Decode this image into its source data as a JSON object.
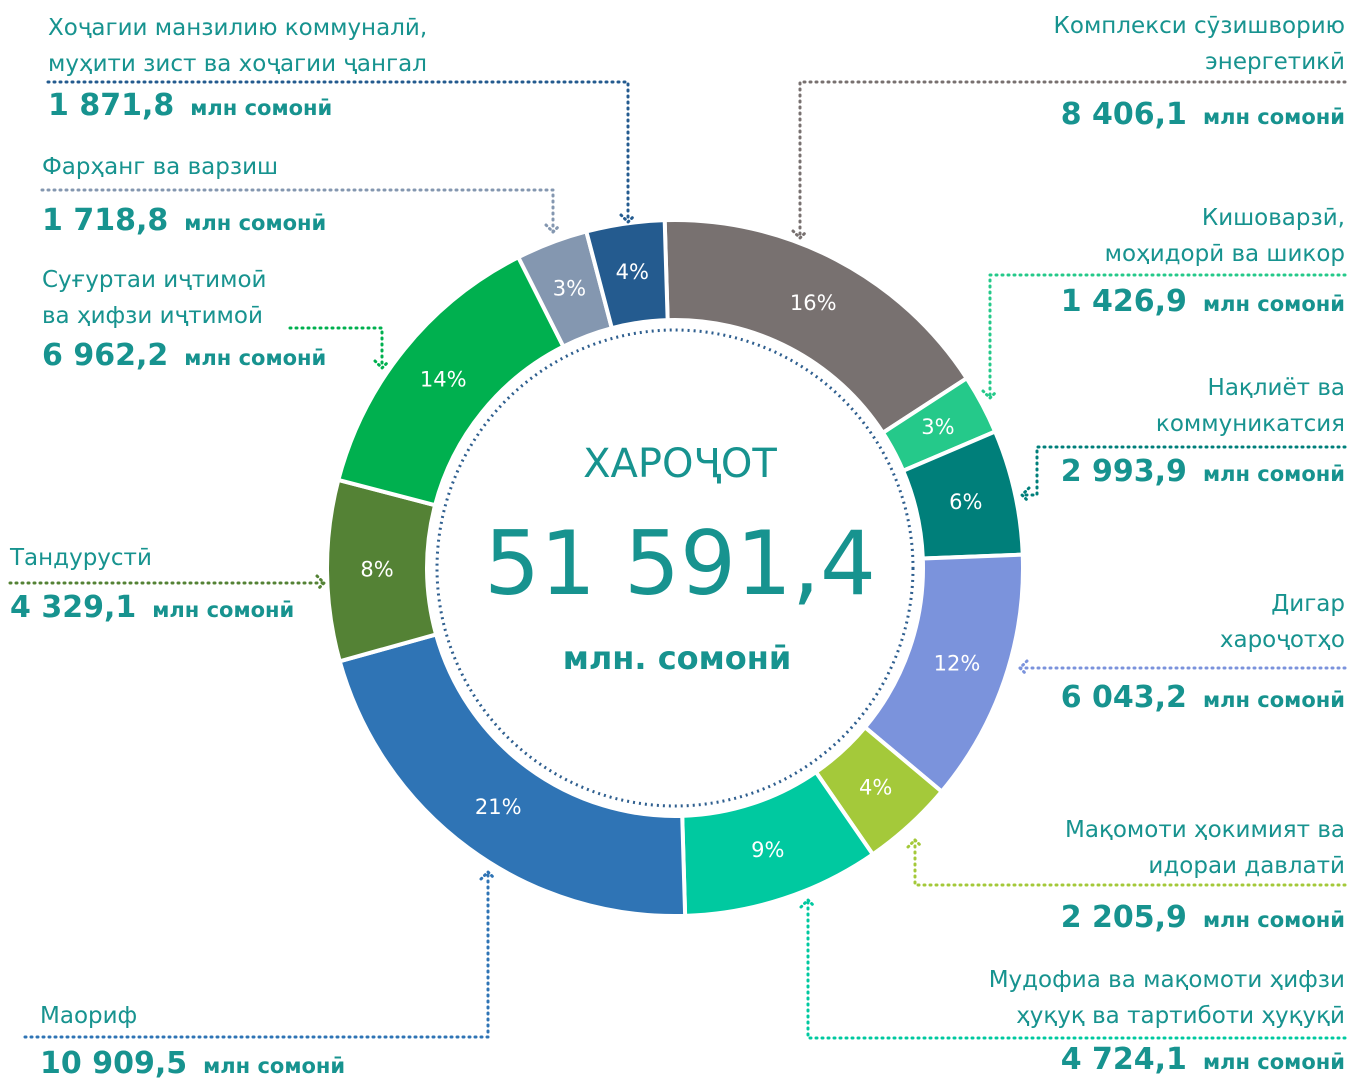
{
  "chart_data": {
    "type": "donut",
    "center_title": "ХАРОҶОТ",
    "total": 51591.4,
    "total_label": "51 591,4",
    "total_unit": "млн. сомонӣ",
    "unit": "млн сомонӣ",
    "categories": [
      "Комплекси сӯзишворию\nэнергетикӣ",
      "Кишоварзӣ,\nмоҳидорӣ ва шикор",
      "Нақлиёт ва\nкоммуникатсия",
      "Дигар\nхароҷотҳо",
      "Мақомоти ҳокимият ва\nидораи давлатӣ",
      "Мудофиа ва мақомоти ҳифзи\nҳуқуқ ва тартиботи ҳуқуқӣ",
      "Маориф",
      "Тандурустӣ",
      "Суғуртаи иҷтимоӣ\nва ҳифзи иҷтимоӣ",
      "Фарҳанг ва варзиш",
      "Хоҷагии манзилию коммуналӣ,\nмуҳити зист ва хоҷагии ҷангал"
    ],
    "values": [
      8406.1,
      1426.9,
      2993.9,
      6043.2,
      2205.9,
      4724.1,
      10909.5,
      4329.1,
      6962.2,
      1718.8,
      1871.8
    ],
    "value_labels": [
      "8 406,1",
      "1 426,9",
      "2 993,9",
      "6 043,2",
      "2 205,9",
      "4 724,1",
      "10 909,5",
      "4 329,1",
      "6 962,2",
      "1 718,8",
      "1 871,8"
    ],
    "percent_labels": [
      "16%",
      "3%",
      "6%",
      "12%",
      "4%",
      "9%",
      "21%",
      "8%",
      "14%",
      "3%",
      "4%"
    ],
    "colors": [
      "#787170",
      "#25c98a",
      "#007f7a",
      "#7b93dc",
      "#a4c93a",
      "#00c9a0",
      "#2f74b5",
      "#548235",
      "#00b04f",
      "#8497b0",
      "#245b8f"
    ]
  }
}
